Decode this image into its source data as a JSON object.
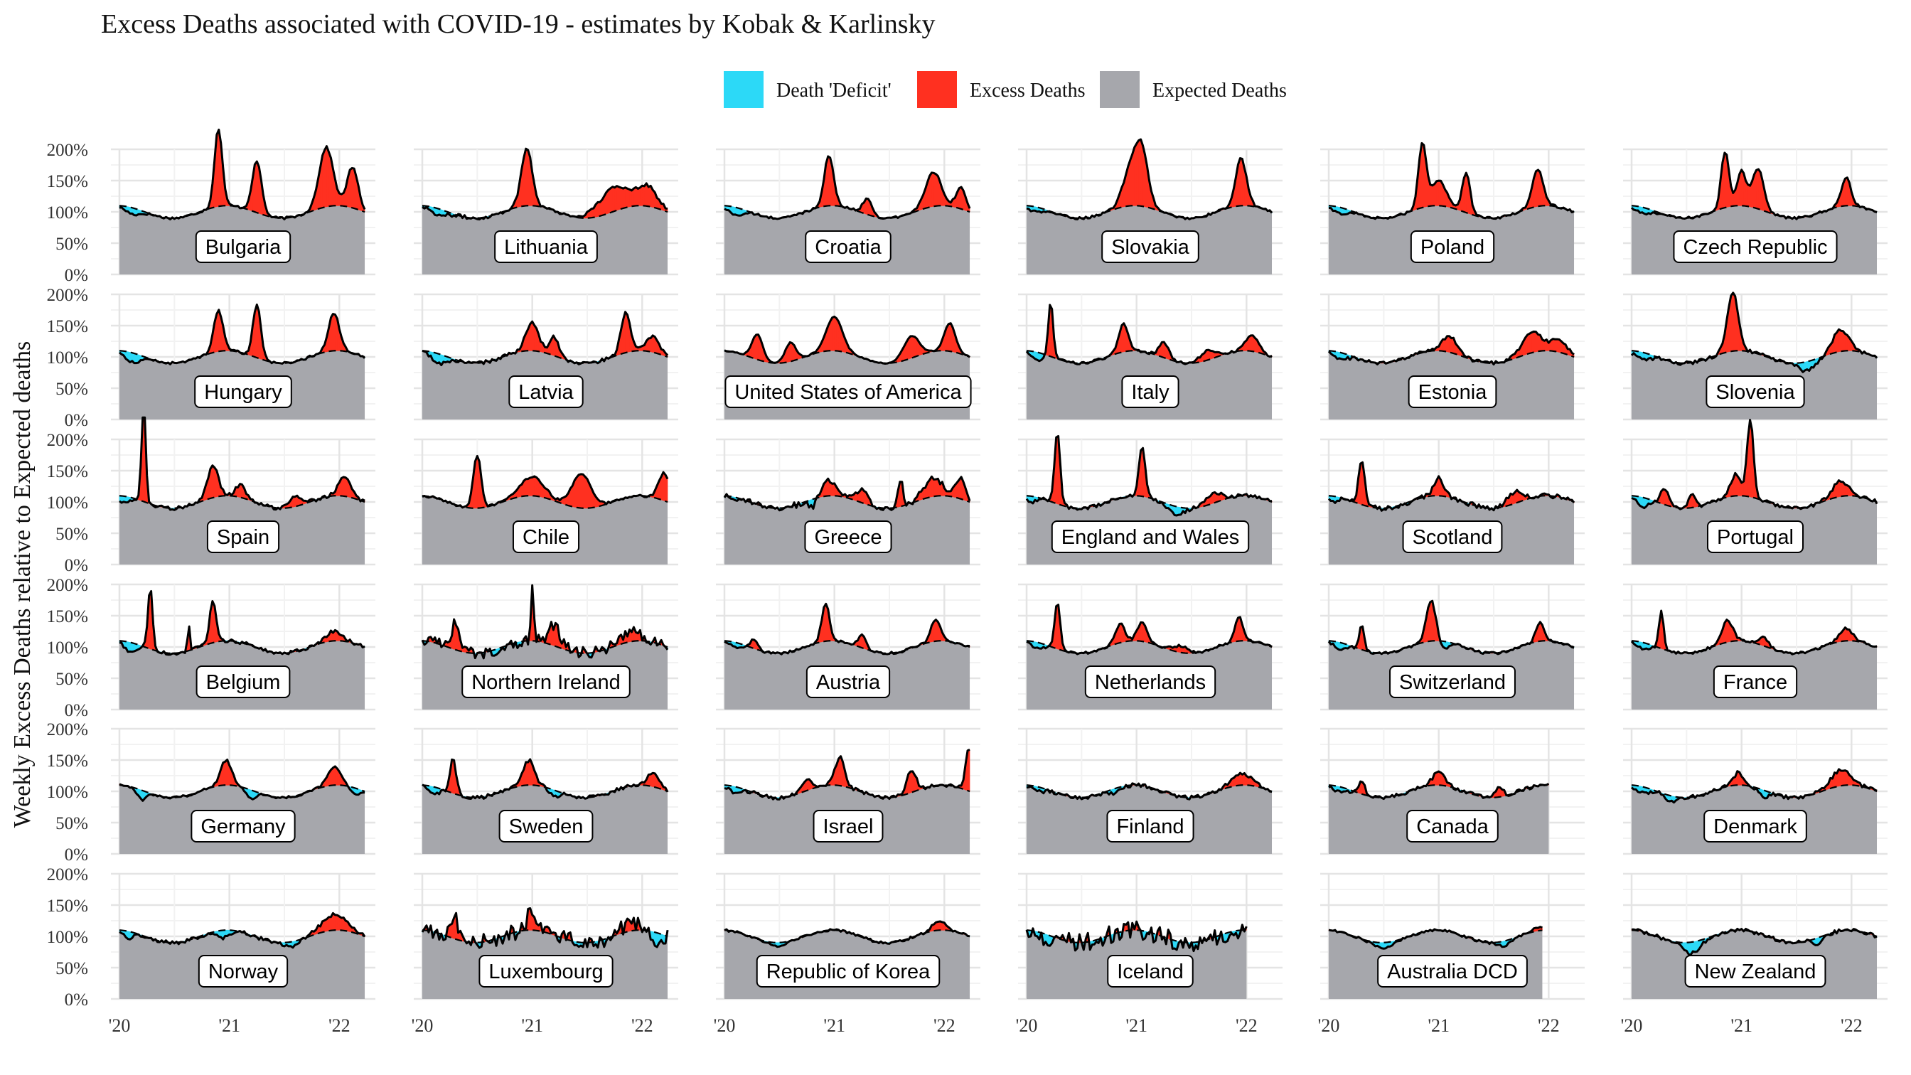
{
  "chart_data": {
    "type": "area",
    "title": "Excess Deaths associated with COVID-19 - estimates by Kobak & Karlinsky",
    "ylabel": "Weekly Excess Deaths relative to Expected deaths",
    "xlabel": "",
    "x_range": [
      "2020-01-01",
      "2022-04-01"
    ],
    "x_ticks": [
      "'20",
      "'21",
      "'22"
    ],
    "ylim": [
      0,
      200
    ],
    "y_ticks": [
      "0%",
      "50%",
      "100%",
      "150%",
      "200%"
    ],
    "grid": true,
    "legend_position": "top-center",
    "colors": {
      "deficit": "#2CD9F7",
      "excess": "#FF3020",
      "expected": "#A6A7AC",
      "line": "#000000"
    },
    "legend": [
      {
        "key": "deficit",
        "label": "Death 'Deficit'"
      },
      {
        "key": "excess",
        "label": "Excess Deaths"
      },
      {
        "key": "expected",
        "label": "Expected Deaths"
      }
    ],
    "panels": [
      {
        "name": "Bulgaria",
        "end": 2.24,
        "noise": 2,
        "peaks": [
          [
            0.9,
            125,
            0.05
          ],
          [
            1.25,
            82,
            0.06
          ],
          [
            1.88,
            95,
            0.09
          ],
          [
            2.12,
            65,
            0.07
          ]
        ],
        "dips": [
          [
            0.12,
            -10,
            0.1
          ]
        ]
      },
      {
        "name": "Lithuania",
        "end": 2.24,
        "noise": 3,
        "peaks": [
          [
            0.95,
            92,
            0.07
          ],
          [
            1.75,
            38,
            0.2
          ],
          [
            2.05,
            30,
            0.12
          ]
        ],
        "dips": [
          [
            0.15,
            -10,
            0.1
          ]
        ]
      },
      {
        "name": "Croatia",
        "end": 2.24,
        "noise": 2,
        "peaks": [
          [
            0.95,
            80,
            0.06
          ],
          [
            1.3,
            25,
            0.06
          ],
          [
            1.9,
            55,
            0.1
          ],
          [
            2.15,
            35,
            0.06
          ]
        ],
        "dips": [
          [
            0.1,
            -12,
            0.1
          ]
        ]
      },
      {
        "name": "Slovakia",
        "end": 2.24,
        "noise": 2,
        "peaks": [
          [
            0.95,
            60,
            0.1
          ],
          [
            1.05,
            80,
            0.08
          ],
          [
            1.95,
            75,
            0.07
          ]
        ],
        "dips": [
          [
            0.08,
            -8,
            0.1
          ]
        ]
      },
      {
        "name": "Poland",
        "end": 2.24,
        "noise": 2,
        "peaks": [
          [
            0.85,
            100,
            0.05
          ],
          [
            1.0,
            40,
            0.1
          ],
          [
            1.25,
            65,
            0.05
          ],
          [
            1.9,
            60,
            0.07
          ]
        ],
        "dips": [
          [
            0.1,
            -10,
            0.1
          ]
        ]
      },
      {
        "name": "Czech Republic",
        "end": 2.24,
        "noise": 2,
        "peaks": [
          [
            0.85,
            90,
            0.05
          ],
          [
            1.0,
            55,
            0.06
          ],
          [
            1.15,
            65,
            0.07
          ],
          [
            1.95,
            45,
            0.06
          ]
        ],
        "dips": [
          [
            0.1,
            -10,
            0.1
          ]
        ]
      },
      {
        "name": "Hungary",
        "end": 2.24,
        "noise": 2,
        "peaks": [
          [
            0.9,
            65,
            0.06
          ],
          [
            1.25,
            85,
            0.05
          ],
          [
            1.95,
            60,
            0.07
          ]
        ],
        "dips": [
          [
            0.12,
            -15,
            0.1
          ]
        ]
      },
      {
        "name": "Latvia",
        "end": 2.24,
        "noise": 3,
        "peaks": [
          [
            1.0,
            45,
            0.08
          ],
          [
            1.2,
            30,
            0.06
          ],
          [
            1.85,
            65,
            0.06
          ],
          [
            2.1,
            25,
            0.08
          ]
        ],
        "dips": [
          [
            0.15,
            -15,
            0.1
          ]
        ]
      },
      {
        "name": "United States of America",
        "end": 2.24,
        "noise": 1,
        "peaks": [
          [
            0.3,
            40,
            0.07
          ],
          [
            0.6,
            30,
            0.07
          ],
          [
            1.0,
            55,
            0.1
          ],
          [
            1.7,
            35,
            0.1
          ],
          [
            2.05,
            45,
            0.07
          ]
        ],
        "dips": []
      },
      {
        "name": "Italy",
        "end": 2.24,
        "noise": 2,
        "peaks": [
          [
            0.22,
            90,
            0.03
          ],
          [
            0.88,
            45,
            0.06
          ],
          [
            1.25,
            25,
            0.06
          ],
          [
            1.65,
            15,
            0.1
          ],
          [
            2.05,
            25,
            0.08
          ]
        ],
        "dips": [
          [
            0.1,
            -12,
            0.08
          ]
        ]
      },
      {
        "name": "Estonia",
        "end": 2.24,
        "noise": 3,
        "peaks": [
          [
            1.1,
            25,
            0.1
          ],
          [
            1.85,
            35,
            0.12
          ],
          [
            2.1,
            20,
            0.1
          ]
        ],
        "dips": [
          [
            0.1,
            -10,
            0.1
          ]
        ]
      },
      {
        "name": "Slovenia",
        "end": 2.24,
        "noise": 3,
        "peaks": [
          [
            0.92,
            95,
            0.07
          ],
          [
            1.9,
            35,
            0.1
          ]
        ],
        "dips": [
          [
            0.1,
            -12,
            0.1
          ],
          [
            1.6,
            -15,
            0.1
          ]
        ]
      },
      {
        "name": "Spain",
        "end": 2.24,
        "noise": 3,
        "peaks": [
          [
            0.22,
            190,
            0.025
          ],
          [
            0.85,
            50,
            0.07
          ],
          [
            1.1,
            20,
            0.06
          ],
          [
            1.6,
            15,
            0.08
          ],
          [
            2.05,
            30,
            0.08
          ]
        ],
        "dips": [
          [
            0.05,
            -12,
            0.06
          ]
        ]
      },
      {
        "name": "Chile",
        "end": 2.24,
        "noise": 2,
        "peaks": [
          [
            0.5,
            85,
            0.05
          ],
          [
            1.0,
            30,
            0.15
          ],
          [
            1.45,
            55,
            0.12
          ],
          [
            2.2,
            45,
            0.07
          ]
        ],
        "dips": []
      },
      {
        "name": "Greece",
        "end": 2.24,
        "noise": 5,
        "peaks": [
          [
            0.95,
            25,
            0.08
          ],
          [
            1.25,
            20,
            0.08
          ],
          [
            1.6,
            45,
            0.03
          ],
          [
            1.9,
            30,
            0.12
          ],
          [
            2.15,
            35,
            0.06
          ]
        ],
        "dips": [
          [
            0.8,
            -12,
            0.05
          ]
        ]
      },
      {
        "name": "England and Wales",
        "end": 2.24,
        "noise": 3,
        "peaks": [
          [
            0.28,
            115,
            0.035
          ],
          [
            1.05,
            80,
            0.04
          ],
          [
            1.7,
            15,
            0.1
          ]
        ],
        "dips": [
          [
            0.05,
            -10,
            0.05
          ],
          [
            1.35,
            -12,
            0.1
          ]
        ]
      },
      {
        "name": "Scotland",
        "end": 2.24,
        "noise": 4,
        "peaks": [
          [
            0.3,
            70,
            0.04
          ],
          [
            1.0,
            30,
            0.06
          ],
          [
            1.7,
            20,
            0.1
          ]
        ],
        "dips": [
          [
            0.05,
            -10,
            0.05
          ]
        ]
      },
      {
        "name": "Portugal",
        "end": 2.24,
        "noise": 3,
        "peaks": [
          [
            0.3,
            25,
            0.05
          ],
          [
            0.55,
            25,
            0.04
          ],
          [
            0.95,
            35,
            0.07
          ],
          [
            1.08,
            125,
            0.04
          ],
          [
            1.9,
            25,
            0.1
          ]
        ],
        "dips": [
          [
            0.1,
            -15,
            0.08
          ]
        ]
      },
      {
        "name": "Belgium",
        "end": 2.24,
        "noise": 3,
        "peaks": [
          [
            0.28,
            100,
            0.03
          ],
          [
            0.63,
            45,
            0.015
          ],
          [
            0.85,
            70,
            0.04
          ],
          [
            1.95,
            15,
            0.1
          ]
        ],
        "dips": [
          [
            0.1,
            -15,
            0.08
          ]
        ]
      },
      {
        "name": "Northern Ireland",
        "end": 2.24,
        "noise": 10,
        "peaks": [
          [
            0.3,
            50,
            0.04
          ],
          [
            1.0,
            80,
            0.02
          ],
          [
            1.2,
            30,
            0.08
          ],
          [
            1.9,
            20,
            0.12
          ]
        ],
        "dips": []
      },
      {
        "name": "Austria",
        "end": 2.24,
        "noise": 2,
        "peaks": [
          [
            0.27,
            15,
            0.04
          ],
          [
            0.92,
            60,
            0.05
          ],
          [
            1.25,
            20,
            0.05
          ],
          [
            1.92,
            35,
            0.06
          ]
        ],
        "dips": [
          [
            0.1,
            -8,
            0.08
          ]
        ]
      },
      {
        "name": "Netherlands",
        "end": 2.24,
        "noise": 2,
        "peaks": [
          [
            0.28,
            75,
            0.035
          ],
          [
            0.85,
            30,
            0.06
          ],
          [
            1.05,
            30,
            0.06
          ],
          [
            1.4,
            10,
            0.1
          ],
          [
            1.93,
            40,
            0.05
          ]
        ],
        "dips": [
          [
            0.1,
            -10,
            0.08
          ]
        ]
      },
      {
        "name": "Switzerland",
        "end": 2.24,
        "noise": 2,
        "peaks": [
          [
            0.3,
            40,
            0.03
          ],
          [
            0.93,
            65,
            0.06
          ],
          [
            1.92,
            30,
            0.05
          ]
        ],
        "dips": [
          [
            0.1,
            -10,
            0.08
          ],
          [
            1.05,
            -12,
            0.05
          ]
        ]
      },
      {
        "name": "France",
        "end": 2.24,
        "noise": 2,
        "peaks": [
          [
            0.27,
            60,
            0.03
          ],
          [
            0.87,
            35,
            0.07
          ],
          [
            1.2,
            15,
            0.06
          ],
          [
            1.95,
            20,
            0.08
          ]
        ],
        "dips": [
          [
            0.1,
            -10,
            0.08
          ]
        ]
      },
      {
        "name": "Germany",
        "end": 2.24,
        "noise": 2,
        "peaks": [
          [
            0.97,
            40,
            0.07
          ],
          [
            1.95,
            30,
            0.08
          ]
        ],
        "dips": [
          [
            0.2,
            -15,
            0.06
          ],
          [
            1.2,
            -15,
            0.06
          ],
          [
            2.15,
            -10,
            0.06
          ]
        ]
      },
      {
        "name": "Sweden",
        "end": 2.24,
        "noise": 3,
        "peaks": [
          [
            0.28,
            55,
            0.04
          ],
          [
            0.97,
            40,
            0.07
          ],
          [
            2.1,
            20,
            0.08
          ]
        ],
        "dips": [
          [
            0.1,
            -10,
            0.08
          ],
          [
            1.2,
            -10,
            0.06
          ]
        ]
      },
      {
        "name": "Israel",
        "end": 2.24,
        "noise": 3,
        "peaks": [
          [
            0.75,
            20,
            0.06
          ],
          [
            1.05,
            45,
            0.06
          ],
          [
            1.7,
            35,
            0.06
          ],
          [
            2.22,
            70,
            0.04
          ]
        ],
        "dips": [
          [
            0.1,
            -10,
            0.08
          ]
        ]
      },
      {
        "name": "Finland",
        "end": 2.24,
        "noise": 3,
        "peaks": [
          [
            1.95,
            20,
            0.12
          ]
        ],
        "dips": [
          [
            0.1,
            -8,
            0.08
          ],
          [
            0.8,
            -8,
            0.08
          ]
        ]
      },
      {
        "name": "Canada",
        "end": 2.0,
        "noise": 3,
        "peaks": [
          [
            0.3,
            20,
            0.04
          ],
          [
            1.0,
            20,
            0.08
          ],
          [
            1.55,
            15,
            0.05
          ]
        ],
        "dips": [
          [
            0.1,
            -8,
            0.08
          ]
        ]
      },
      {
        "name": "Denmark",
        "end": 2.24,
        "noise": 3,
        "peaks": [
          [
            0.97,
            20,
            0.06
          ],
          [
            1.9,
            25,
            0.12
          ]
        ],
        "dips": [
          [
            0.1,
            -10,
            0.08
          ],
          [
            0.35,
            -10,
            0.06
          ],
          [
            1.2,
            -12,
            0.06
          ]
        ]
      },
      {
        "name": "Norway",
        "end": 2.24,
        "noise": 3,
        "peaks": [
          [
            1.95,
            25,
            0.15
          ]
        ],
        "dips": [
          [
            0.08,
            -10,
            0.06
          ],
          [
            0.95,
            -12,
            0.08
          ],
          [
            1.55,
            -8,
            0.08
          ]
        ]
      },
      {
        "name": "Luxembourg",
        "end": 2.24,
        "noise": 13,
        "peaks": [
          [
            0.3,
            30,
            0.05
          ],
          [
            1.0,
            35,
            0.06
          ],
          [
            1.9,
            15,
            0.1
          ]
        ],
        "dips": [
          [
            2.15,
            -15,
            0.05
          ]
        ]
      },
      {
        "name": "Republic of Korea",
        "end": 2.24,
        "noise": 2,
        "peaks": [
          [
            1.95,
            15,
            0.08
          ]
        ],
        "dips": [
          [
            0.5,
            -6,
            0.08
          ]
        ]
      },
      {
        "name": "Iceland",
        "end": 2.0,
        "noise": 15,
        "peaks": [],
        "dips": [
          [
            0.2,
            -10,
            0.1
          ],
          [
            1.5,
            -10,
            0.1
          ]
        ]
      },
      {
        "name": "Australia DCD",
        "end": 1.95,
        "noise": 2,
        "peaks": [
          [
            1.9,
            5,
            0.1
          ]
        ],
        "dips": [
          [
            0.5,
            -10,
            0.1
          ],
          [
            1.6,
            -8,
            0.08
          ]
        ]
      },
      {
        "name": "New Zealand",
        "end": 2.24,
        "noise": 3,
        "peaks": [],
        "dips": [
          [
            0.55,
            -18,
            0.1
          ],
          [
            1.7,
            -10,
            0.06
          ]
        ]
      }
    ]
  }
}
